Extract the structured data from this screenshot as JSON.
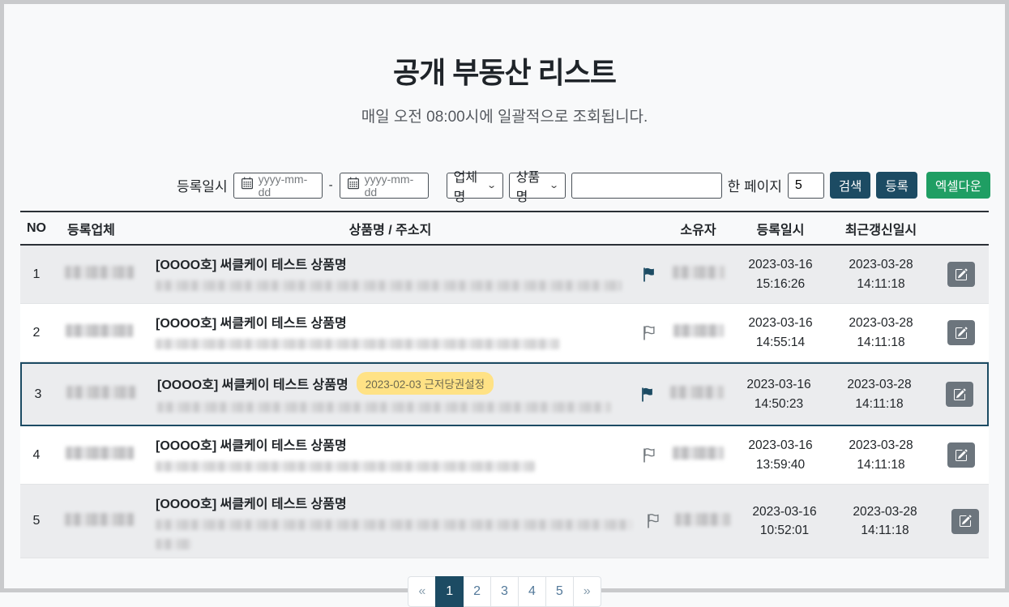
{
  "page": {
    "title": "공개 부동산 리스트",
    "subtitle": "매일 오전 08:00시에 일괄적으로 조회됩니다."
  },
  "search": {
    "date_label": "등록일시",
    "date_from_placeholder": "yyyy-mm-dd",
    "date_separator": "-",
    "date_to_placeholder": "yyyy-mm-dd",
    "company_select_value": "업체명",
    "product_select_value": "상품명",
    "keyword_value": "",
    "per_page_label": "한 페이지",
    "per_page_value": "5",
    "search_button_label": "검색",
    "register_button_label": "등록",
    "excel_button_label": "엑셀다운"
  },
  "table": {
    "headers": {
      "no": "NO",
      "company": "등록업체",
      "product": "상품명 / 주소지",
      "owner": "소유자",
      "registered": "등록일시",
      "updated": "최근갱신일시"
    },
    "rows": [
      {
        "no": "1",
        "title": "[OOOO호] 써클케이 테스트 상품명",
        "badge": "",
        "flag": "filled",
        "highlighted": false,
        "reg_date": "2023-03-16",
        "reg_time": "15:16:26",
        "upd_date": "2023-03-28",
        "upd_time": "14:11:18"
      },
      {
        "no": "2",
        "title": "[OOOO호] 써클케이 테스트 상품명",
        "badge": "",
        "flag": "outline",
        "highlighted": false,
        "reg_date": "2023-03-16",
        "reg_time": "14:55:14",
        "upd_date": "2023-03-28",
        "upd_time": "14:11:18"
      },
      {
        "no": "3",
        "title": "[OOOO호] 써클케이 테스트 상품명",
        "badge": "2023-02-03 근저당권설정",
        "flag": "filled",
        "highlighted": true,
        "reg_date": "2023-03-16",
        "reg_time": "14:50:23",
        "upd_date": "2023-03-28",
        "upd_time": "14:11:18"
      },
      {
        "no": "4",
        "title": "[OOOO호] 써클케이 테스트 상품명",
        "badge": "",
        "flag": "outline",
        "highlighted": false,
        "reg_date": "2023-03-16",
        "reg_time": "13:59:40",
        "upd_date": "2023-03-28",
        "upd_time": "14:11:18"
      },
      {
        "no": "5",
        "title": "[OOOO호] 써클케이 테스트 상품명",
        "badge": "",
        "flag": "outline",
        "highlighted": false,
        "reg_date": "2023-03-16",
        "reg_time": "10:52:01",
        "upd_date": "2023-03-28",
        "upd_time": "14:11:18"
      }
    ]
  },
  "pagination": {
    "prev_label": "«",
    "next_label": "»",
    "pages": [
      "1",
      "2",
      "3",
      "4",
      "5"
    ],
    "active_page": "1"
  },
  "colors": {
    "accent_navy": "#1c4b63",
    "excel_green": "#1f9e63",
    "badge_yellow": "#ffe285",
    "row_stripe": "#ebecee",
    "edit_gray": "#6c757d"
  }
}
